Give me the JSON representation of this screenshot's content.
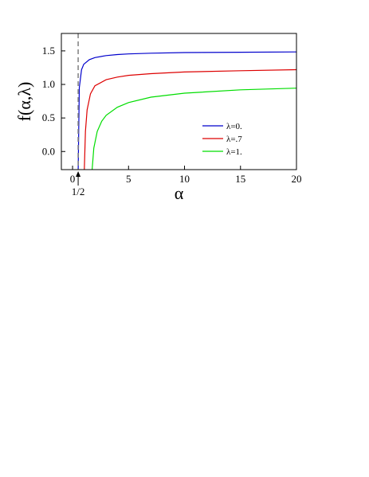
{
  "chart_data": {
    "type": "line",
    "xlabel": "α",
    "ylabel": "f(α,λ)",
    "xlim": [
      -1,
      20
    ],
    "ylim": [
      -0.27,
      1.76
    ],
    "x_ticks": [
      "0",
      "5",
      "10",
      "15",
      "20"
    ],
    "x_tick_values": [
      0,
      5,
      10,
      15,
      20
    ],
    "y_ticks": [
      "0.0",
      "0.5",
      "1.0",
      "1.5"
    ],
    "y_tick_values": [
      0,
      0.5,
      1.0,
      1.5
    ],
    "grid": false,
    "legend_position": "lower-right",
    "reference_line": {
      "x": 0.5,
      "style": "dashed",
      "color": "#808080",
      "annotation": "1/2"
    },
    "series": [
      {
        "name": "λ=0.",
        "color": "#0000cc",
        "x": [
          0.5,
          0.6,
          0.8,
          1.0,
          1.5,
          2,
          3,
          4,
          5,
          7,
          10,
          15,
          20
        ],
        "y": [
          -0.27,
          0.95,
          1.22,
          1.3,
          1.37,
          1.4,
          1.43,
          1.445,
          1.455,
          1.465,
          1.475,
          1.48,
          1.485
        ]
      },
      {
        "name": "λ=.7",
        "color": "#dd0000",
        "x": [
          1.05,
          1.15,
          1.3,
          1.6,
          2,
          3,
          4,
          5,
          7,
          10,
          15,
          20
        ],
        "y": [
          -0.27,
          0.3,
          0.62,
          0.86,
          0.98,
          1.07,
          1.11,
          1.135,
          1.16,
          1.185,
          1.205,
          1.22
        ]
      },
      {
        "name": "λ=1.",
        "color": "#00dd00",
        "x": [
          1.75,
          1.9,
          2.2,
          2.6,
          3,
          4,
          5,
          7,
          10,
          15,
          20
        ],
        "y": [
          -0.27,
          0.05,
          0.3,
          0.45,
          0.54,
          0.66,
          0.73,
          0.81,
          0.87,
          0.92,
          0.945
        ]
      }
    ]
  }
}
